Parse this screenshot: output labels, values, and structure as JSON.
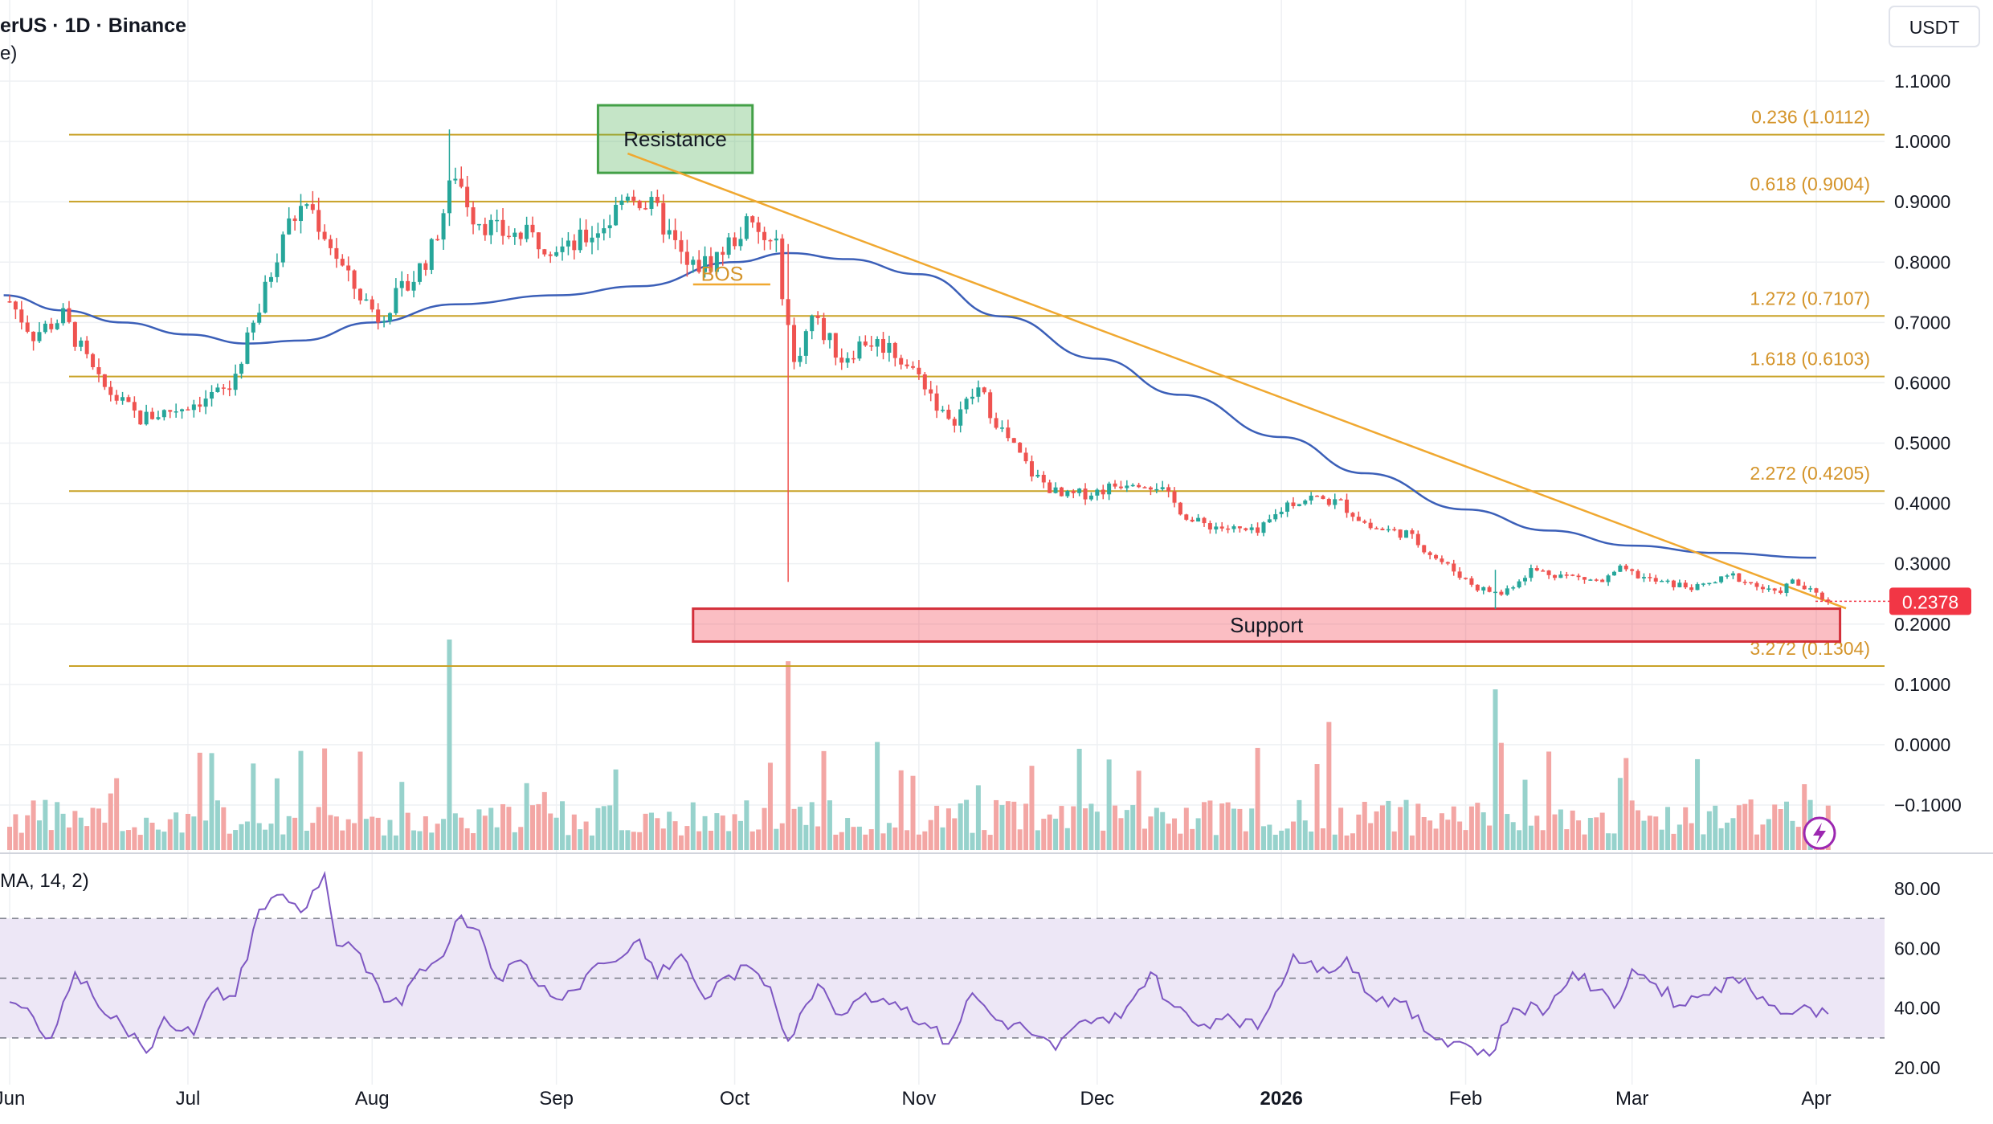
{
  "header": {
    "symbol_line": "erUS · 1D · Binance",
    "sub_line": "e)",
    "currency_label": "USDT"
  },
  "colors": {
    "up": "#26a69a",
    "down": "#ef5350",
    "up_volume": "#97d2cc",
    "down_volume": "#f3a6a4",
    "fib": "#c9a227",
    "fib_label": "#d4942a",
    "ma": "#3b5fb8",
    "trend": "#f0a830",
    "rsi": "#7e57c2",
    "rsi_band": "#ede7f6",
    "price_tag": "#f23645",
    "grid": "#eef0f3",
    "axis_text": "#131722"
  },
  "chart_data": [
    {
      "type": "candlestick",
      "title": "",
      "y_axis_ticks": [
        "1.1000",
        "1.0000",
        "0.9000",
        "0.8000",
        "0.7000",
        "0.6000",
        "0.5000",
        "0.4000",
        "0.3000",
        "0.2000",
        "0.1000",
        "0.0000",
        "−0.1000"
      ],
      "ylim": [
        -0.1,
        1.1
      ],
      "x_axis_ticks": [
        {
          "label": "Jun",
          "date": "2025-06-01"
        },
        {
          "label": "Jul",
          "date": "2025-07-01"
        },
        {
          "label": "Aug",
          "date": "2025-08-01"
        },
        {
          "label": "Sep",
          "date": "2025-09-01"
        },
        {
          "label": "Oct",
          "date": "2025-10-01"
        },
        {
          "label": "Nov",
          "date": "2025-11-01"
        },
        {
          "label": "Dec",
          "date": "2025-12-01"
        },
        {
          "label": "2026",
          "date": "2026-01-01",
          "bold": true
        },
        {
          "label": "Feb",
          "date": "2026-02-01"
        },
        {
          "label": "Mar",
          "date": "2026-03-01"
        },
        {
          "label": "Apr",
          "date": "2026-04-01"
        }
      ],
      "x_range": [
        "2025-05-31",
        "2026-04-10"
      ],
      "last_price": "0.2378",
      "fib_levels": [
        {
          "ratio": "0.236",
          "price": 1.0112,
          "label": "0.236 (1.0112)"
        },
        {
          "ratio": "0.618",
          "price": 0.9004,
          "label": "0.618 (0.9004)"
        },
        {
          "ratio": "1.272",
          "price": 0.7107,
          "label": "1.272 (0.7107)"
        },
        {
          "ratio": "1.618",
          "price": 0.6103,
          "label": "1.618 (0.6103)"
        },
        {
          "ratio": "2.272",
          "price": 0.4205,
          "label": "2.272 (0.4205)"
        },
        {
          "ratio": "3.272",
          "price": 0.1304,
          "label": "3.272 (0.1304)"
        }
      ],
      "zones": [
        {
          "label": "Resistance",
          "date_start": "2025-09-08",
          "date_end": "2025-10-04",
          "price_top": 1.06,
          "price_bottom": 0.948,
          "kind": "resistance"
        },
        {
          "label": "Support",
          "date_start": "2025-09-24",
          "date_end": "2026-04-05",
          "price_top": 0.2255,
          "price_bottom": 0.171,
          "kind": "support"
        }
      ],
      "annotations": [
        {
          "label": "BOS",
          "date": "2025-09-27",
          "price": 0.785
        }
      ],
      "bos_line": {
        "date_start": "2025-09-24",
        "date_end": "2025-10-07",
        "price": 0.763
      },
      "trend_line": {
        "start_date": "2025-09-13",
        "start_price": 0.98,
        "end_date": "2026-04-06",
        "end_price": 0.226
      },
      "ohlc_anchors": [
        {
          "date": "2025-06-01",
          "price": 0.735
        },
        {
          "date": "2025-06-05",
          "price": 0.68
        },
        {
          "date": "2025-06-10",
          "price": 0.71
        },
        {
          "date": "2025-06-16",
          "price": 0.6
        },
        {
          "date": "2025-06-23",
          "price": 0.54
        },
        {
          "date": "2025-06-30",
          "price": 0.56
        },
        {
          "date": "2025-07-08",
          "price": 0.59
        },
        {
          "date": "2025-07-13",
          "price": 0.72
        },
        {
          "date": "2025-07-17",
          "price": 0.85
        },
        {
          "date": "2025-07-21",
          "price": 0.9
        },
        {
          "date": "2025-07-25",
          "price": 0.83
        },
        {
          "date": "2025-07-28",
          "price": 0.77
        },
        {
          "date": "2025-08-02",
          "price": 0.71
        },
        {
          "date": "2025-08-07",
          "price": 0.76
        },
        {
          "date": "2025-08-11",
          "price": 0.82
        },
        {
          "date": "2025-08-15",
          "price": 0.95
        },
        {
          "date": "2025-08-18",
          "price": 0.88
        },
        {
          "date": "2025-08-22",
          "price": 0.85
        },
        {
          "date": "2025-08-28",
          "price": 0.84
        },
        {
          "date": "2025-09-03",
          "price": 0.82
        },
        {
          "date": "2025-09-10",
          "price": 0.87
        },
        {
          "date": "2025-09-13",
          "price": 0.92
        },
        {
          "date": "2025-09-18",
          "price": 0.88
        },
        {
          "date": "2025-09-23",
          "price": 0.79
        },
        {
          "date": "2025-09-27",
          "price": 0.8
        },
        {
          "date": "2025-10-03",
          "price": 0.86
        },
        {
          "date": "2025-10-08",
          "price": 0.82
        },
        {
          "date": "2025-10-11",
          "price": 0.63
        },
        {
          "date": "2025-10-14",
          "price": 0.71
        },
        {
          "date": "2025-10-19",
          "price": 0.64
        },
        {
          "date": "2025-10-23",
          "price": 0.67
        },
        {
          "date": "2025-10-27",
          "price": 0.66
        },
        {
          "date": "2025-11-02",
          "price": 0.6
        },
        {
          "date": "2025-11-06",
          "price": 0.53
        },
        {
          "date": "2025-11-11",
          "price": 0.59
        },
        {
          "date": "2025-11-15",
          "price": 0.52
        },
        {
          "date": "2025-11-20",
          "price": 0.45
        },
        {
          "date": "2025-11-25",
          "price": 0.41
        },
        {
          "date": "2025-12-01",
          "price": 0.42
        },
        {
          "date": "2025-12-07",
          "price": 0.44
        },
        {
          "date": "2025-12-11",
          "price": 0.43
        },
        {
          "date": "2025-12-17",
          "price": 0.37
        },
        {
          "date": "2025-12-22",
          "price": 0.36
        },
        {
          "date": "2025-12-28",
          "price": 0.35
        },
        {
          "date": "2026-01-02",
          "price": 0.4
        },
        {
          "date": "2026-01-06",
          "price": 0.41
        },
        {
          "date": "2026-01-11",
          "price": 0.4
        },
        {
          "date": "2026-01-16",
          "price": 0.36
        },
        {
          "date": "2026-01-22",
          "price": 0.35
        },
        {
          "date": "2026-01-27",
          "price": 0.31
        },
        {
          "date": "2026-02-03",
          "price": 0.26
        },
        {
          "date": "2026-02-07",
          "price": 0.25
        },
        {
          "date": "2026-02-12",
          "price": 0.29
        },
        {
          "date": "2026-02-18",
          "price": 0.28
        },
        {
          "date": "2026-02-24",
          "price": 0.27
        },
        {
          "date": "2026-02-27",
          "price": 0.29
        },
        {
          "date": "2026-03-05",
          "price": 0.27
        },
        {
          "date": "2026-03-12",
          "price": 0.26
        },
        {
          "date": "2026-03-18",
          "price": 0.28
        },
        {
          "date": "2026-03-25",
          "price": 0.25
        },
        {
          "date": "2026-03-28",
          "price": 0.27
        },
        {
          "date": "2026-04-03",
          "price": 0.2378
        }
      ],
      "spikes": [
        {
          "date": "2025-10-10",
          "low": 0.27,
          "high": 0.83
        },
        {
          "date": "2025-08-14",
          "low": 0.86,
          "high": 1.02
        },
        {
          "date": "2026-02-06",
          "low": 0.225,
          "high": 0.29
        }
      ],
      "ma_series": [
        {
          "date": "2025-05-31",
          "price": 0.745
        },
        {
          "date": "2025-06-10",
          "price": 0.72
        },
        {
          "date": "2025-06-20",
          "price": 0.7
        },
        {
          "date": "2025-07-01",
          "price": 0.68
        },
        {
          "date": "2025-07-11",
          "price": 0.665
        },
        {
          "date": "2025-07-20",
          "price": 0.67
        },
        {
          "date": "2025-08-01",
          "price": 0.7
        },
        {
          "date": "2025-08-15",
          "price": 0.73
        },
        {
          "date": "2025-09-01",
          "price": 0.745
        },
        {
          "date": "2025-09-15",
          "price": 0.76
        },
        {
          "date": "2025-10-01",
          "price": 0.8
        },
        {
          "date": "2025-10-10",
          "price": 0.815
        },
        {
          "date": "2025-10-20",
          "price": 0.805
        },
        {
          "date": "2025-11-01",
          "price": 0.78
        },
        {
          "date": "2025-11-15",
          "price": 0.71
        },
        {
          "date": "2025-12-01",
          "price": 0.64
        },
        {
          "date": "2025-12-15",
          "price": 0.58
        },
        {
          "date": "2026-01-01",
          "price": 0.51
        },
        {
          "date": "2026-01-15",
          "price": 0.45
        },
        {
          "date": "2026-02-01",
          "price": 0.39
        },
        {
          "date": "2026-02-15",
          "price": 0.355
        },
        {
          "date": "2026-03-01",
          "price": 0.33
        },
        {
          "date": "2026-03-15",
          "price": 0.318
        },
        {
          "date": "2026-04-01",
          "price": 0.31
        }
      ]
    },
    {
      "type": "line",
      "title_fragment": "MA, 14, 2)",
      "y_axis_ticks": [
        "80.00",
        "60.00",
        "40.00",
        "20.00"
      ],
      "ylim": [
        20,
        90
      ],
      "levels": [
        70,
        50,
        30
      ],
      "anchors": [
        {
          "date": "2025-06-01",
          "value": 42
        },
        {
          "date": "2025-06-05",
          "value": 37
        },
        {
          "date": "2025-06-08",
          "value": 30
        },
        {
          "date": "2025-06-12",
          "value": 52
        },
        {
          "date": "2025-06-15",
          "value": 44
        },
        {
          "date": "2025-06-20",
          "value": 34
        },
        {
          "date": "2025-06-24",
          "value": 25
        },
        {
          "date": "2025-06-27",
          "value": 37
        },
        {
          "date": "2025-07-02",
          "value": 31
        },
        {
          "date": "2025-07-05",
          "value": 45
        },
        {
          "date": "2025-07-09",
          "value": 44
        },
        {
          "date": "2025-07-13",
          "value": 73
        },
        {
          "date": "2025-07-17",
          "value": 78
        },
        {
          "date": "2025-07-20",
          "value": 72
        },
        {
          "date": "2025-07-24",
          "value": 85
        },
        {
          "date": "2025-07-26",
          "value": 61
        },
        {
          "date": "2025-07-29",
          "value": 60
        },
        {
          "date": "2025-08-03",
          "value": 42
        },
        {
          "date": "2025-08-06",
          "value": 41
        },
        {
          "date": "2025-08-09",
          "value": 53
        },
        {
          "date": "2025-08-12",
          "value": 56
        },
        {
          "date": "2025-08-16",
          "value": 71
        },
        {
          "date": "2025-08-19",
          "value": 66
        },
        {
          "date": "2025-08-22",
          "value": 50
        },
        {
          "date": "2025-08-26",
          "value": 56
        },
        {
          "date": "2025-08-31",
          "value": 44
        },
        {
          "date": "2025-09-04",
          "value": 46
        },
        {
          "date": "2025-09-08",
          "value": 55
        },
        {
          "date": "2025-09-12",
          "value": 57
        },
        {
          "date": "2025-09-15",
          "value": 63
        },
        {
          "date": "2025-09-18",
          "value": 50
        },
        {
          "date": "2025-09-22",
          "value": 58
        },
        {
          "date": "2025-09-26",
          "value": 43
        },
        {
          "date": "2025-09-30",
          "value": 51
        },
        {
          "date": "2025-10-04",
          "value": 53
        },
        {
          "date": "2025-10-07",
          "value": 47
        },
        {
          "date": "2025-10-10",
          "value": 29
        },
        {
          "date": "2025-10-12",
          "value": 38
        },
        {
          "date": "2025-10-15",
          "value": 48
        },
        {
          "date": "2025-10-18",
          "value": 38
        },
        {
          "date": "2025-10-23",
          "value": 45
        },
        {
          "date": "2025-10-28",
          "value": 42
        },
        {
          "date": "2025-11-02",
          "value": 35
        },
        {
          "date": "2025-11-06",
          "value": 28
        },
        {
          "date": "2025-11-10",
          "value": 45
        },
        {
          "date": "2025-11-14",
          "value": 36
        },
        {
          "date": "2025-11-19",
          "value": 33
        },
        {
          "date": "2025-11-24",
          "value": 26
        },
        {
          "date": "2025-11-29",
          "value": 36
        },
        {
          "date": "2025-12-03",
          "value": 35
        },
        {
          "date": "2025-12-07",
          "value": 43
        },
        {
          "date": "2025-12-10",
          "value": 52
        },
        {
          "date": "2025-12-13",
          "value": 42
        },
        {
          "date": "2025-12-18",
          "value": 34
        },
        {
          "date": "2025-12-23",
          "value": 38
        },
        {
          "date": "2025-12-28",
          "value": 33
        },
        {
          "date": "2026-01-03",
          "value": 58
        },
        {
          "date": "2026-01-07",
          "value": 52
        },
        {
          "date": "2026-01-12",
          "value": 57
        },
        {
          "date": "2026-01-16",
          "value": 44
        },
        {
          "date": "2026-01-21",
          "value": 42
        },
        {
          "date": "2026-01-26",
          "value": 31
        },
        {
          "date": "2026-02-01",
          "value": 28
        },
        {
          "date": "2026-02-05",
          "value": 24
        },
        {
          "date": "2026-02-09",
          "value": 40
        },
        {
          "date": "2026-02-15",
          "value": 40
        },
        {
          "date": "2026-02-19",
          "value": 52
        },
        {
          "date": "2026-02-23",
          "value": 46
        },
        {
          "date": "2026-02-26",
          "value": 40
        },
        {
          "date": "2026-03-01",
          "value": 53
        },
        {
          "date": "2026-03-05",
          "value": 48
        },
        {
          "date": "2026-03-09",
          "value": 41
        },
        {
          "date": "2026-03-15",
          "value": 47
        },
        {
          "date": "2026-03-20",
          "value": 50
        },
        {
          "date": "2026-03-24",
          "value": 41
        },
        {
          "date": "2026-03-28",
          "value": 38
        },
        {
          "date": "2026-03-31",
          "value": 40
        },
        {
          "date": "2026-04-03",
          "value": 38
        }
      ]
    }
  ]
}
